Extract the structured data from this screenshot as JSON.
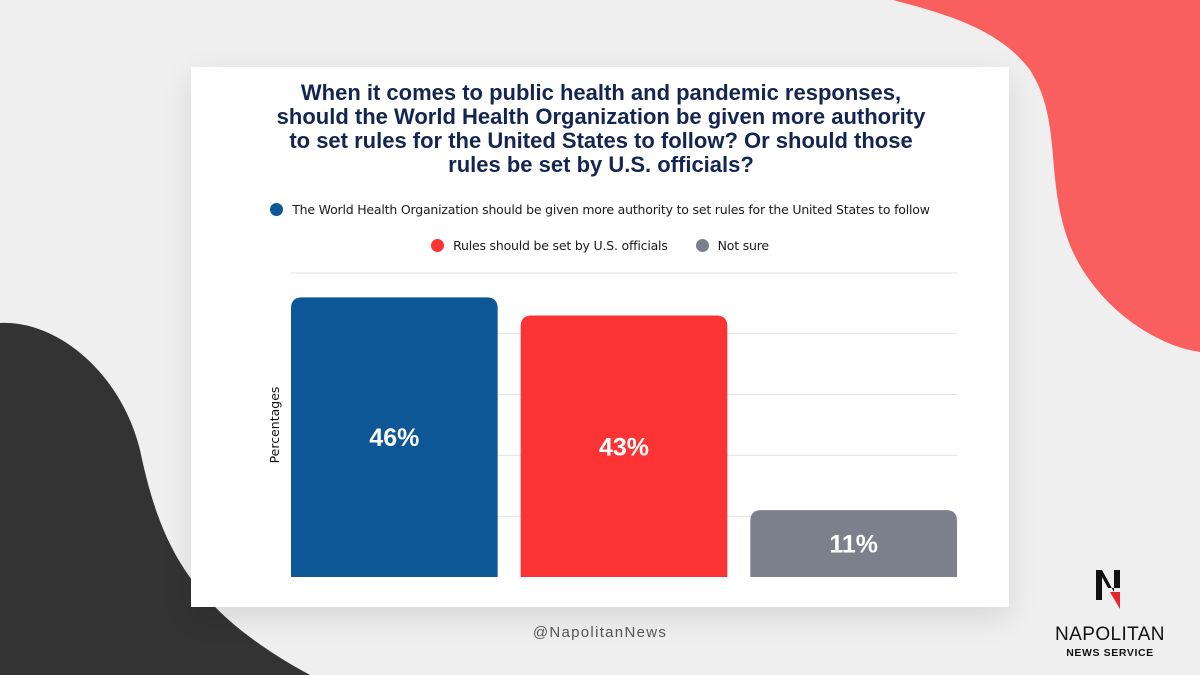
{
  "colors": {
    "background": "#efefef",
    "coral_shape": "#f95f5e",
    "dark_shape": "#333333",
    "title": "#142650",
    "who_blue": "#0d5796",
    "us_red": "#fb3334",
    "not_sure_gray": "#7b808c",
    "gridline": "#e2e2e2"
  },
  "chart_data": {
    "type": "bar",
    "title": "When it comes to public health and pandemic responses, should the World Health Organization be given more authority to set rules for the United States to follow? Or should those rules be set by U.S. officials?",
    "ylabel": "Percentages",
    "xlabel": "",
    "ylim": [
      0,
      50
    ],
    "grid": true,
    "legend_position": "top",
    "series": [
      {
        "name": "The World Health Organization should be given more authority to set rules for the United States to follow",
        "value": 46,
        "label": "46%",
        "color": "#0d5796"
      },
      {
        "name": "Rules should be set by U.S. officials",
        "value": 43,
        "label": "43%",
        "color": "#fb3334"
      },
      {
        "name": "Not sure",
        "value": 11,
        "label": "11%",
        "color": "#7b808c"
      }
    ]
  },
  "footer": {
    "handle": "@NapolitanNews"
  },
  "brand": {
    "icon": "napolitan-n-logo-icon",
    "name": "NAPOLITAN",
    "subtitle": "NEWS SERVICE"
  }
}
